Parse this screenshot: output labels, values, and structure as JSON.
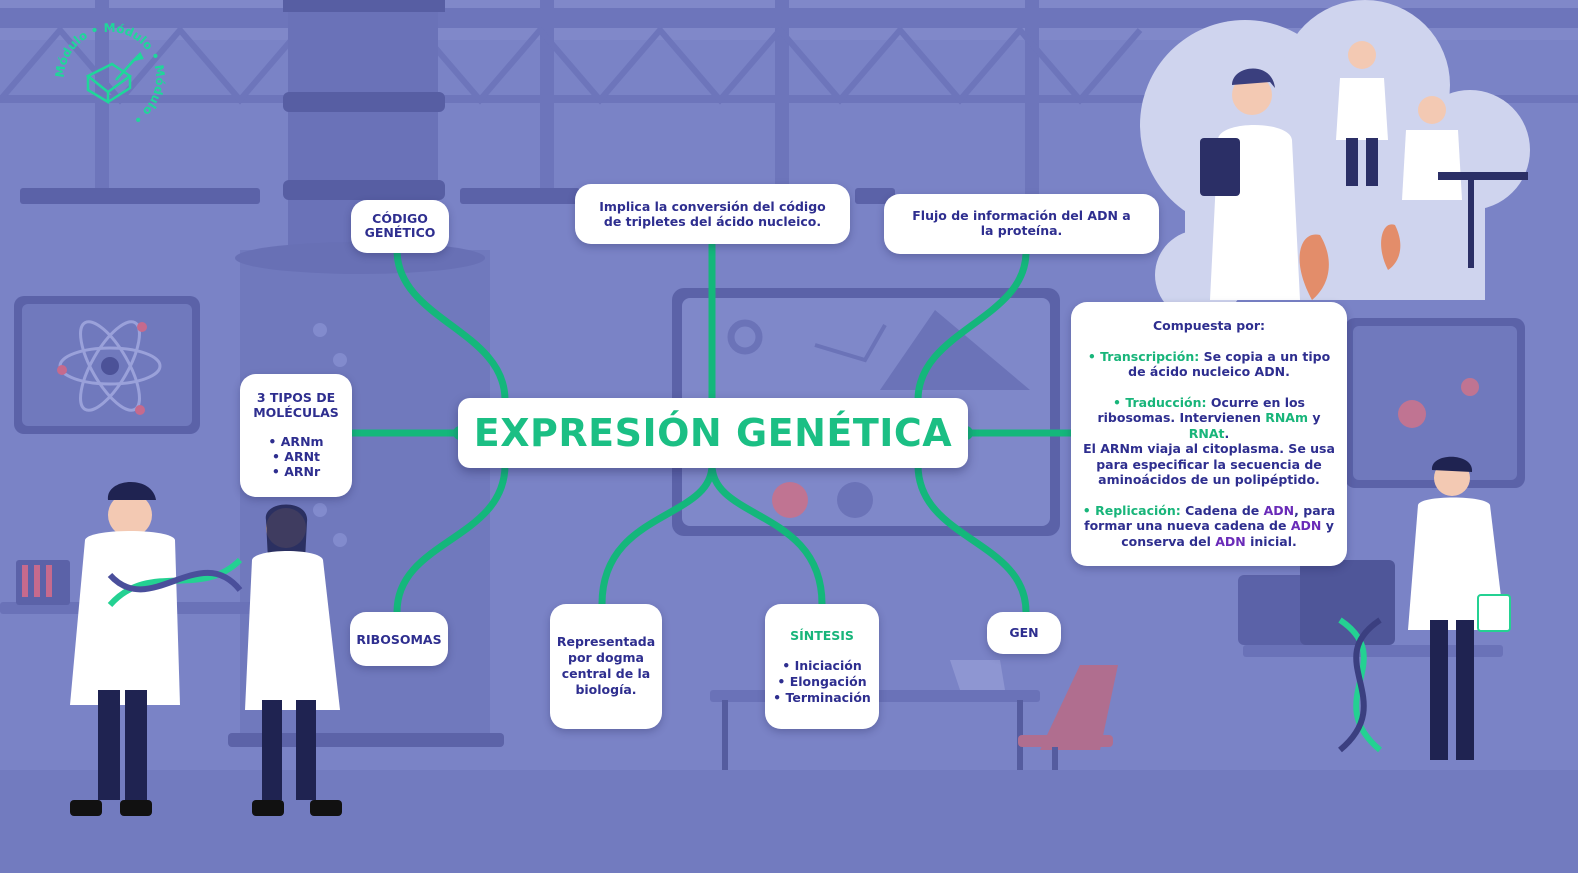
{
  "colors": {
    "background": "#7a83c6",
    "connector": "#14b77b",
    "title": "#1bbf84",
    "text": "#2e2e8f",
    "accent_green": "#18b57a",
    "accent_purple": "#6a2bb8"
  },
  "logo": {
    "text": "Módulo • Módulo • Módulo •",
    "icon": "puzzle-pencil-icon"
  },
  "center": {
    "title": "EXPRESIÓN GENÉTICA"
  },
  "nodes": {
    "codigo": {
      "line1": "CÓDIGO",
      "line2": "GENÉTICO"
    },
    "implica": {
      "line1": "Implica la conversión del código",
      "line2": "de tripletes del ácido nucleico."
    },
    "flujo": {
      "line1": "Flujo de información del ADN a",
      "line2": "la proteína."
    },
    "tipos": {
      "line1": "3 TIPOS DE",
      "line2": "MOLÉCULAS",
      "items": [
        "• ARNm",
        "• ARNt",
        "• ARNr"
      ]
    },
    "ribosomas": {
      "label": "RIBOSOMAS"
    },
    "dogma": {
      "line1": "Representada",
      "line2": "por dogma",
      "line3": "central de la",
      "line4": "biología."
    },
    "sintesis": {
      "title": "SÍNTESIS",
      "items": [
        "• Iniciación",
        "• Elongación",
        "• Terminación"
      ]
    },
    "gen": {
      "label": "GEN"
    },
    "compuesta": {
      "heading": "Compuesta por:",
      "transcripcion_label": "• Transcripción:",
      "transcripcion_text1": " Se copia a un tipo",
      "transcripcion_text2": "de ácido nucleico ADN.",
      "traduccion_label": "• Traducción:",
      "traduccion_text1": " Ocurre en los",
      "traduccion_text2": "ribosomas. Intervienen ",
      "rnam": "RNAm",
      "y": " y",
      "rnat": "RNAt",
      "dot": ".",
      "arnm_line1": "El ARNm viaja al citoplasma. Se usa",
      "arnm_line2": "para especificar la secuencia de",
      "arnm_line3": "aminoácidos de un polipéptido.",
      "replicacion_label": "• Replicación:",
      "replicacion_text1": " Cadena de ",
      "adn": "ADN",
      "replicacion_text2": ", para",
      "replicacion_text3": "formar una nueva cadena de ",
      "replicacion_text4": " y",
      "replicacion_text5": "conserva del ",
      "replicacion_text6": " inicial."
    }
  }
}
